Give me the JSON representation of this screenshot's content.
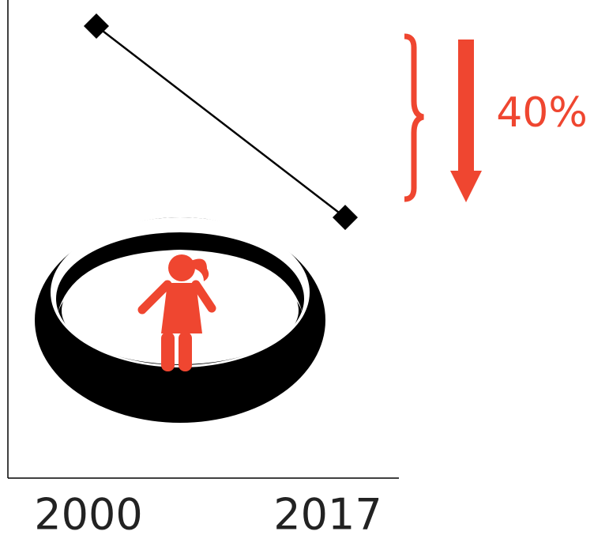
{
  "chart_data": {
    "type": "line",
    "categories": [
      "2000",
      "2017"
    ],
    "values": [
      100,
      60
    ],
    "color": "#000000",
    "marker": "diamond",
    "ylim": [
      5.5,
      103.8
    ],
    "annotation": "40%",
    "annotation_color": "#ef4630"
  }
}
